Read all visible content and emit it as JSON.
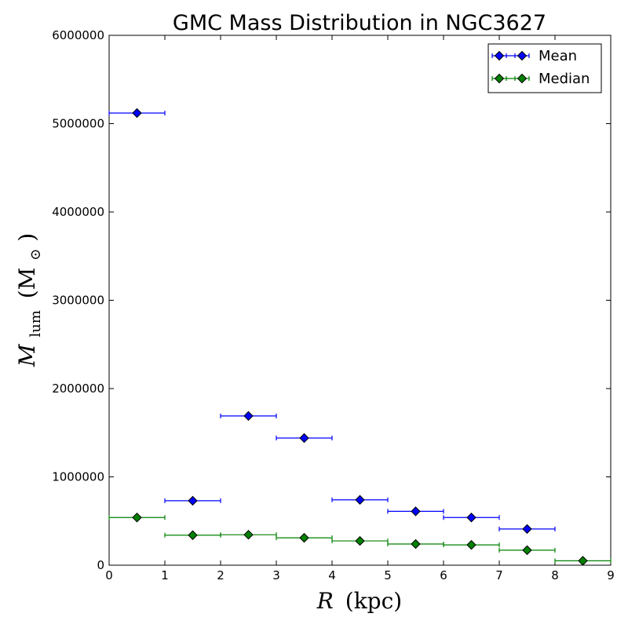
{
  "chart_data": {
    "type": "scatter",
    "title": "GMC Mass Distribution in NGC3627",
    "xlabel_main": "R",
    "xlabel_unit": "(kpc)",
    "ylabel_main": "M",
    "ylabel_sub": "lum",
    "ylabel_unit_open": "(M",
    "ylabel_unit_sub": "⊙",
    "ylabel_unit_close": ")",
    "xlim": [
      0,
      9
    ],
    "ylim": [
      0,
      6000000
    ],
    "xticks": [
      0,
      1,
      2,
      3,
      4,
      5,
      6,
      7,
      8,
      9
    ],
    "yticks": [
      0,
      1000000,
      2000000,
      3000000,
      4000000,
      5000000,
      6000000
    ],
    "xtick_labels": [
      "0",
      "1",
      "2",
      "3",
      "4",
      "5",
      "6",
      "7",
      "8",
      "9"
    ],
    "ytick_labels": [
      "0",
      "1000000",
      "2000000",
      "3000000",
      "4000000",
      "5000000",
      "6000000"
    ],
    "grid": false,
    "legend_position": "top-right",
    "series": [
      {
        "name": "Mean",
        "color": "#0000ff",
        "marker": "diamond",
        "x": [
          0.5,
          1.5,
          2.5,
          3.5,
          4.5,
          5.5,
          6.5,
          7.5
        ],
        "xerr": [
          0.5,
          0.5,
          0.5,
          0.5,
          0.5,
          0.5,
          0.5,
          0.5
        ],
        "y": [
          5120000,
          730000,
          1690000,
          1440000,
          740000,
          610000,
          540000,
          410000
        ]
      },
      {
        "name": "Median",
        "color": "#008000",
        "marker": "diamond",
        "x": [
          0.5,
          1.5,
          2.5,
          3.5,
          4.5,
          5.5,
          6.5,
          7.5,
          8.5
        ],
        "xerr": [
          0.5,
          0.5,
          0.5,
          0.5,
          0.5,
          0.5,
          0.5,
          0.5,
          0.5
        ],
        "y": [
          540000,
          340000,
          345000,
          310000,
          275000,
          240000,
          230000,
          170000,
          50000
        ]
      }
    ]
  }
}
